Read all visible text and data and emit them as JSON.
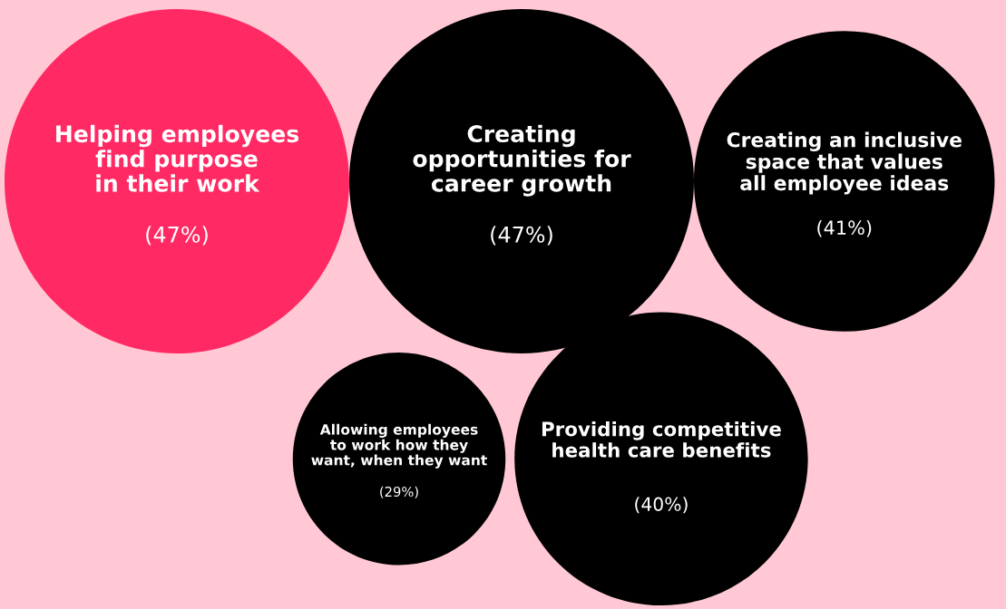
{
  "chart_data": {
    "type": "other",
    "categories": [
      "Helping employees\nfind purpose\nin their work",
      "Creating\nopportunities for\ncareer growth",
      "Creating an inclusive\nspace that values\nall employee ideas",
      "Allowing employees\nto work how they\nwant, when they want",
      "Providing competitive\nhealth care benefits"
    ],
    "values": [
      47,
      47,
      41,
      29,
      40
    ],
    "value_labels": [
      "(47%)",
      "(47%)",
      "(41%)",
      "(29%)",
      "(40%)"
    ],
    "colors": [
      "#ff2a64",
      "#000000",
      "#000000",
      "#000000",
      "#000000"
    ]
  }
}
